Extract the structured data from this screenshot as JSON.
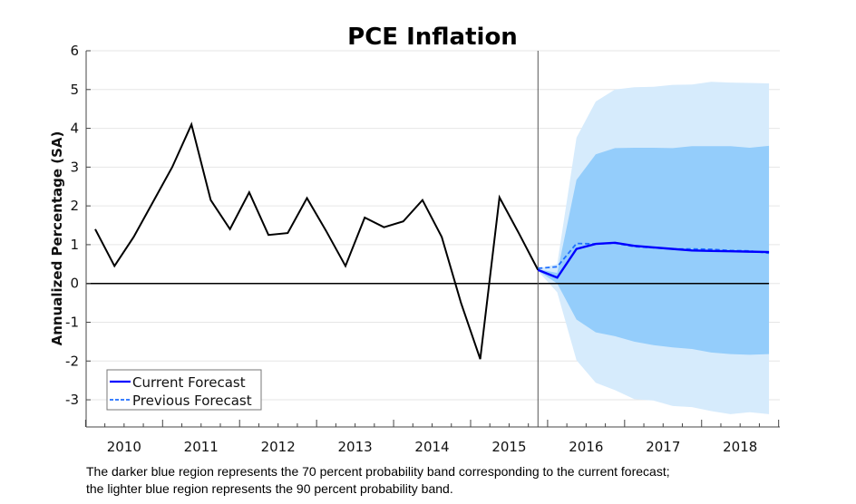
{
  "chart_data": {
    "type": "line",
    "title": "PCE Inflation",
    "ylabel": "Annualized Percentage (SA)",
    "xlabel": "",
    "ylim": [
      -3.7,
      6
    ],
    "yticks": [
      6,
      5,
      4,
      3,
      2,
      1,
      0,
      -1,
      -2,
      -3
    ],
    "xticks": [
      "2010",
      "2011",
      "2012",
      "2013",
      "2014",
      "2015",
      "2016",
      "2017",
      "2018"
    ],
    "grid": "horizontal",
    "legend_position": "bottom-left",
    "history": {
      "x": [
        "2010Q1",
        "2010Q2",
        "2010Q3",
        "2010Q4",
        "2011Q1",
        "2011Q2",
        "2011Q3",
        "2011Q4",
        "2012Q1",
        "2012Q2",
        "2012Q3",
        "2012Q4",
        "2013Q1",
        "2013Q2",
        "2013Q3",
        "2013Q4",
        "2014Q1",
        "2014Q2",
        "2014Q3",
        "2014Q4",
        "2015Q1",
        "2015Q2",
        "2015Q3",
        "2015Q4"
      ],
      "values": [
        1.4,
        0.45,
        1.2,
        2.1,
        3.0,
        4.1,
        2.15,
        1.4,
        2.35,
        1.25,
        1.3,
        2.2,
        1.35,
        0.45,
        1.7,
        1.45,
        1.6,
        2.15,
        1.2,
        -0.5,
        -1.95,
        2.22,
        1.3,
        0.35
      ],
      "color": "#000000"
    },
    "forecast_x": [
      "2015Q4",
      "2016Q1",
      "2016Q2",
      "2016Q3",
      "2016Q4",
      "2017Q1",
      "2017Q2",
      "2017Q3",
      "2017Q4",
      "2018Q1",
      "2018Q2",
      "2018Q3",
      "2018Q4"
    ],
    "series": [
      {
        "name": "Current Forecast",
        "style": "solid",
        "color": "#0000ff",
        "values": [
          0.35,
          0.15,
          0.89,
          1.02,
          1.05,
          0.97,
          0.93,
          0.89,
          0.85,
          0.84,
          0.83,
          0.82,
          0.81
        ]
      },
      {
        "name": "Previous Forecast",
        "style": "dashed",
        "color": "#1f6fff",
        "values": [
          0.39,
          0.43,
          1.03,
          1.02,
          1.04,
          0.95,
          0.92,
          0.89,
          0.89,
          0.88,
          0.85,
          0.84,
          0.78
        ]
      }
    ],
    "bands": [
      {
        "level": "90 percent",
        "color": "#d6ebfc",
        "upper": [
          0.38,
          0.5,
          3.76,
          4.69,
          5.0,
          5.06,
          5.07,
          5.12,
          5.13,
          5.2,
          5.18,
          5.17,
          5.16
        ],
        "lower": [
          0.32,
          -0.23,
          -1.98,
          -2.56,
          -2.75,
          -2.98,
          -3.02,
          -3.16,
          -3.19,
          -3.29,
          -3.37,
          -3.32,
          -3.37
        ]
      },
      {
        "level": "70 percent",
        "color": "#94cdfb",
        "upper": [
          0.37,
          0.27,
          2.67,
          3.33,
          3.49,
          3.5,
          3.5,
          3.49,
          3.54,
          3.54,
          3.54,
          3.5,
          3.55
        ],
        "lower": [
          0.33,
          0.0,
          -0.93,
          -1.26,
          -1.36,
          -1.5,
          -1.59,
          -1.65,
          -1.69,
          -1.78,
          -1.82,
          -1.84,
          -1.82
        ]
      }
    ],
    "forecast_start_marker": "2015Q4",
    "caption": [
      "The darker blue region represents the 70 percent probability band corresponding to the current forecast;",
      "the lighter blue region represents the 90 percent probability band."
    ]
  }
}
